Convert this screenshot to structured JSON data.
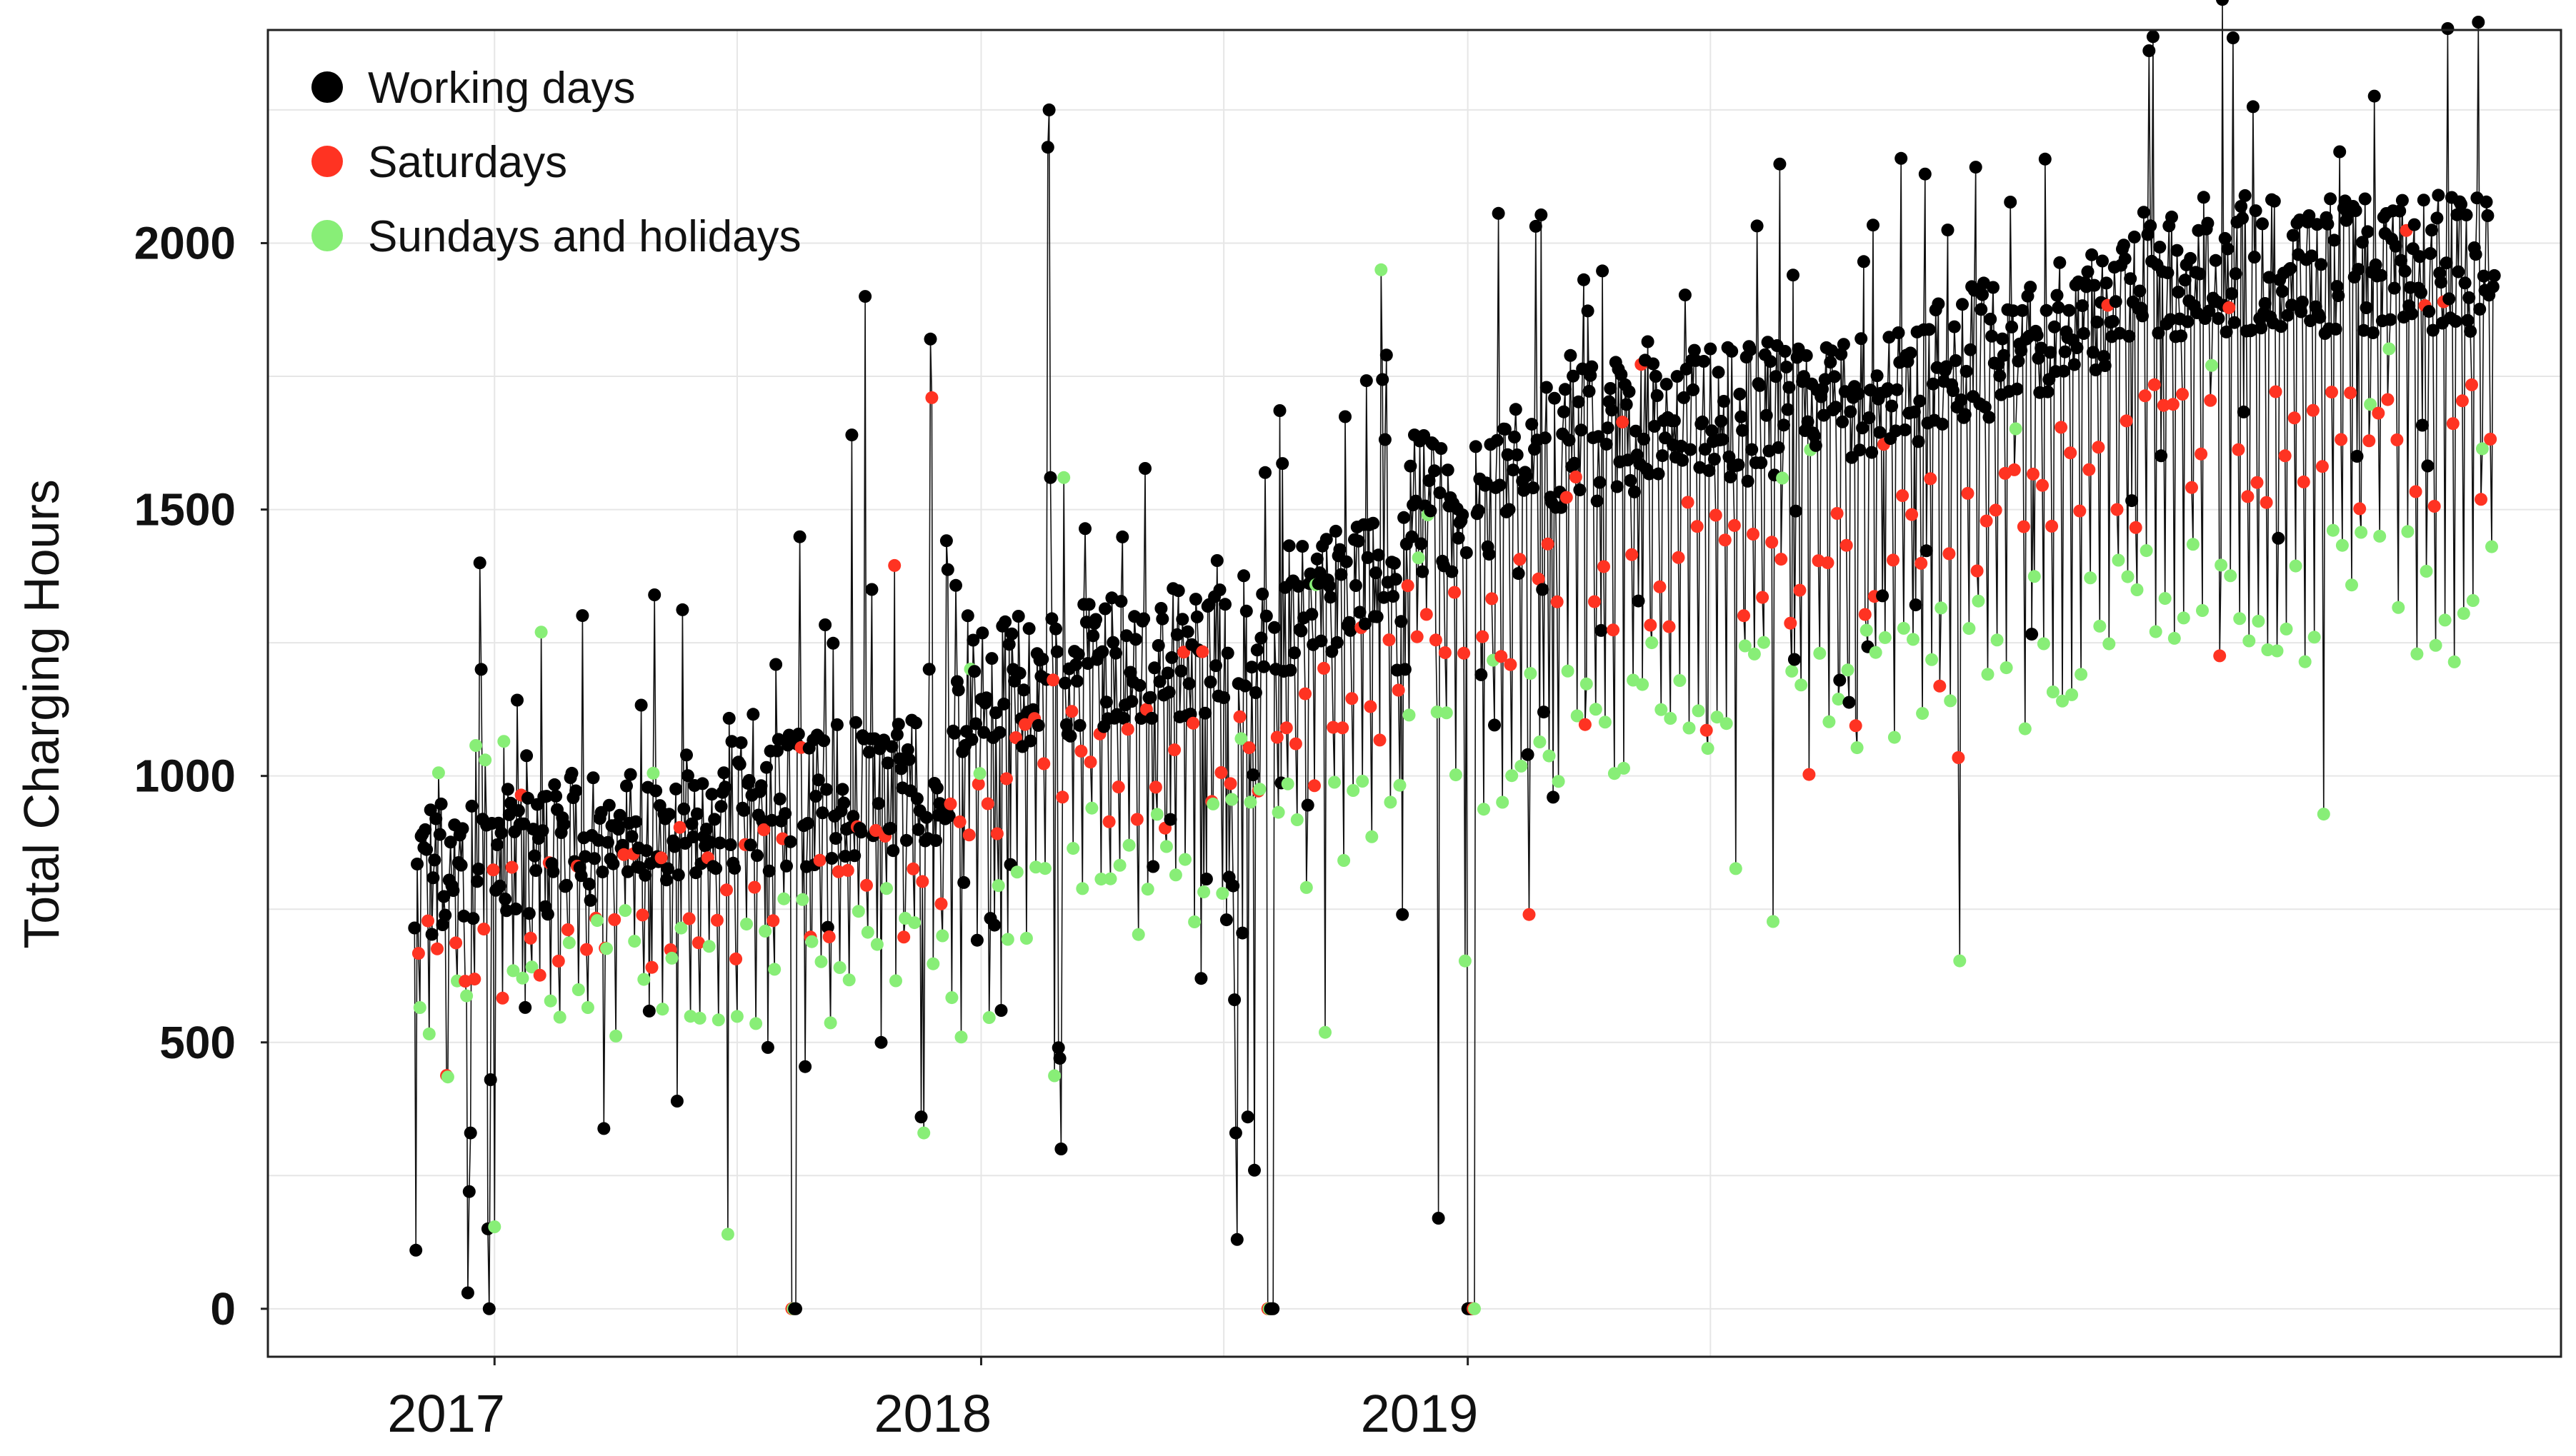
{
  "chart_data": {
    "type": "scatter",
    "title": "",
    "xlabel": "",
    "ylabel": "Total Charging Hours",
    "ylim": [
      -90,
      2400
    ],
    "xlim_days": [
      -170,
      1550
    ],
    "y_ticks": [
      0,
      500,
      1000,
      1500,
      2000
    ],
    "y_tick_labels": [
      "0",
      "500",
      "1000",
      "1500",
      "2000"
    ],
    "x_ticks": [
      0,
      365,
      730
    ],
    "x_tick_labels": [
      "2017",
      "2018",
      "2019"
    ],
    "x_minor_ticks": [
      182,
      547,
      912
    ],
    "grid": true,
    "connecting_line": true,
    "legend_position": "top-left",
    "series": [
      {
        "key": "working",
        "name": "Working days",
        "color": "#000000"
      },
      {
        "key": "saturday",
        "name": "Saturdays",
        "color": "#ff3322"
      },
      {
        "key": "sunday",
        "name": "Sundays and holidays",
        "color": "#88ee77"
      }
    ],
    "x_unit": "days since 2017-01-01",
    "daily_series": {
      "start_day": -60,
      "end_day": 1500,
      "day0_weekday": 0,
      "base_level_knots": [
        [
          -60,
          820
        ],
        [
          0,
          840
        ],
        [
          120,
          930
        ],
        [
          240,
          960
        ],
        [
          335,
          1000
        ],
        [
          365,
          1170
        ],
        [
          470,
          1210
        ],
        [
          560,
          1260
        ],
        [
          650,
          1390
        ],
        [
          700,
          1520
        ],
        [
          730,
          1490
        ],
        [
          790,
          1620
        ],
        [
          850,
          1660
        ],
        [
          940,
          1680
        ],
        [
          1000,
          1700
        ],
        [
          1100,
          1780
        ],
        [
          1270,
          1960
        ]
      ],
      "noise_amplitude": 130,
      "saturday_factor": 0.83,
      "sunday_factor": 0.68,
      "zero_days": [
        -4,
        223,
        224,
        225,
        226,
        580,
        581,
        582,
        583,
        584,
        730,
        731,
        732,
        733,
        734,
        735
      ],
      "point_overrides": [
        [
          -59,
          110
        ],
        [
          -20,
          30
        ],
        [
          -19,
          220
        ],
        [
          -18,
          330
        ],
        [
          -11,
          1400
        ],
        [
          -10,
          1200
        ],
        [
          -7,
          1030
        ],
        [
          -5,
          150
        ],
        [
          -3,
          430
        ],
        [
          35,
          1270
        ],
        [
          120,
          1340
        ],
        [
          175,
          140
        ],
        [
          268,
          1640
        ],
        [
          278,
          1900
        ],
        [
          283,
          1350
        ],
        [
          290,
          500
        ],
        [
          300,
          1395
        ],
        [
          320,
          360
        ],
        [
          322,
          330
        ],
        [
          327,
          1820
        ],
        [
          328,
          1710
        ],
        [
          336,
          700
        ],
        [
          350,
          510
        ],
        [
          352,
          800
        ],
        [
          375,
          720
        ],
        [
          380,
          560
        ],
        [
          400,
          1120
        ],
        [
          415,
          2180
        ],
        [
          416,
          2250
        ],
        [
          417,
          1560
        ],
        [
          419,
          1180
        ],
        [
          423,
          490
        ],
        [
          424,
          470
        ],
        [
          425,
          300
        ],
        [
          427,
          1560
        ],
        [
          530,
          620
        ],
        [
          549,
          730
        ],
        [
          551,
          810
        ],
        [
          555,
          580
        ],
        [
          556,
          330
        ],
        [
          557,
          130
        ],
        [
          560,
          1070
        ],
        [
          565,
          360
        ],
        [
          570,
          260
        ],
        [
          665,
          1950
        ],
        [
          669,
          1790
        ],
        [
          680,
          1290
        ],
        [
          681,
          740
        ],
        [
          683,
          1200
        ],
        [
          690,
          1640
        ],
        [
          700,
          1490
        ],
        [
          708,
          170
        ],
        [
          740,
          1190
        ],
        [
          745,
          1430
        ],
        [
          768,
          1380
        ],
        [
          775,
          1040
        ],
        [
          776,
          740
        ],
        [
          786,
          1350
        ],
        [
          787,
          1120
        ]
      ]
    }
  }
}
